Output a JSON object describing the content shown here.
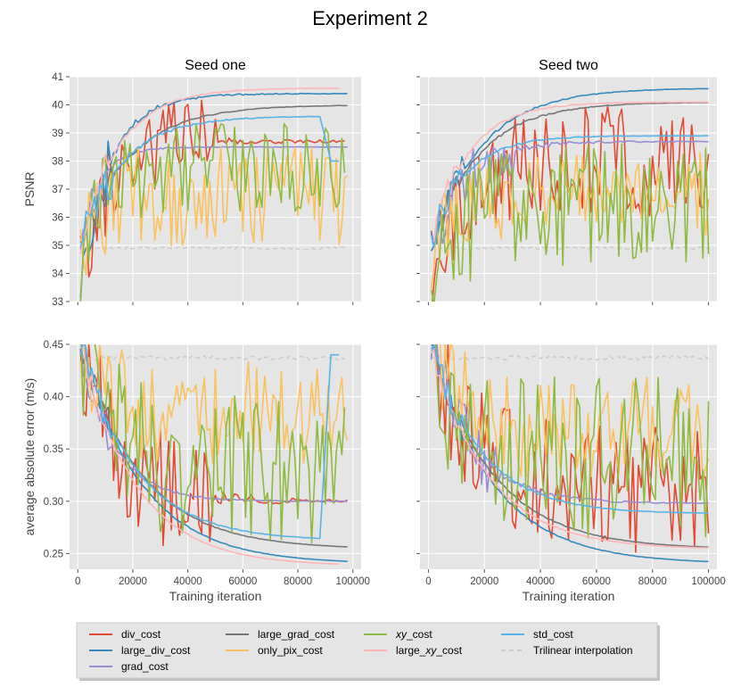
{
  "figure": {
    "suptitle": "Experiment 2"
  },
  "legend": [
    {
      "label": "div_cost",
      "color": "#E24A33",
      "dashed": false
    },
    {
      "label": "large_div_cost",
      "color": "#348ABD",
      "dashed": false
    },
    {
      "label": "grad_cost",
      "color": "#988ED5",
      "dashed": false
    },
    {
      "label": "large_grad_cost",
      "color": "#777777",
      "dashed": false
    },
    {
      "label": "only_pix_cost",
      "color": "#FBC15E",
      "dashed": false
    },
    {
      "label": "xy_cost",
      "color": "#8EBA42",
      "dashed": false,
      "italic_part": "xy",
      "suffix": "_cost"
    },
    {
      "label": "large_xy_cost",
      "color": "#FFB5B8",
      "dashed": false,
      "prefix": "large_",
      "italic_part": "xy",
      "suffix": "_cost"
    },
    {
      "label": "std_cost",
      "color": "#56B4E9",
      "dashed": false
    },
    {
      "label": "Trilinear interpolation",
      "color": "#CCCCCC",
      "dashed": true
    }
  ],
  "chart_data": [
    {
      "type": "line",
      "title": "Seed one",
      "xlabel": "",
      "ylabel": "PSNR",
      "xlim": [
        -3000,
        103000
      ],
      "ylim": [
        33,
        41
      ],
      "xticks": [
        0,
        20000,
        40000,
        60000,
        80000,
        100000
      ],
      "xticklabels": [],
      "yticks": [
        33,
        34,
        35,
        36,
        37,
        38,
        39,
        40,
        41
      ],
      "yticklabels": [
        "33",
        "34",
        "35",
        "36",
        "37",
        "38",
        "39",
        "40",
        "41"
      ],
      "series": [
        {
          "name": "div_cost",
          "x_start": 1000,
          "x_end": 97000,
          "start": 34.0,
          "plateau": 38.7,
          "tau": 10000,
          "noise": 1.6,
          "noise_end": 50000,
          "seed": 11
        },
        {
          "name": "large_div_cost",
          "x_start": 1000,
          "x_end": 98000,
          "start": 34.0,
          "plateau": 40.4,
          "tau": 11000,
          "noise": 1.2,
          "noise_end": 12000,
          "seed": 12
        },
        {
          "name": "grad_cost",
          "x_start": 1000,
          "x_end": 98000,
          "start": 35.0,
          "plateau": 38.5,
          "tau": 7000,
          "noise": 0.5,
          "noise_end": 8000,
          "seed": 13
        },
        {
          "name": "large_grad_cost",
          "x_start": 1000,
          "x_end": 98000,
          "start": 35.0,
          "plateau": 40.0,
          "tau": 18000,
          "noise": 0.6,
          "noise_end": 12000,
          "seed": 14
        },
        {
          "name": "only_pix_cost",
          "x_start": 1000,
          "x_end": 98000,
          "start": 34.5,
          "plateau": 36.8,
          "tau": 6000,
          "noise": 1.8,
          "noise_end": 98000,
          "seed": 15
        },
        {
          "name": "xy_cost",
          "x_start": 1000,
          "x_end": 97000,
          "start": 34.5,
          "plateau": 37.8,
          "tau": 8000,
          "noise": 1.6,
          "noise_end": 97000,
          "seed": 16
        },
        {
          "name": "large_xy_cost",
          "x_start": 1000,
          "x_end": 95000,
          "start": 35.0,
          "plateau": 40.6,
          "tau": 14000,
          "noise": 0.6,
          "noise_end": 10000,
          "seed": 17
        },
        {
          "name": "std_cost",
          "x_start": 1000,
          "x_end": 95000,
          "start": 35.0,
          "plateau": 39.6,
          "tau": 15000,
          "noise": 0.8,
          "noise_end": 12000,
          "seed": 18,
          "drop_at": 88000,
          "drop_to": 38.0
        },
        {
          "name": "Trilinear interpolation",
          "x_start": 1000,
          "x_end": 97000,
          "start": 34.9,
          "plateau": 34.9,
          "tau": 1000,
          "noise": 0.05,
          "noise_end": 97000,
          "seed": 19
        }
      ]
    },
    {
      "type": "line",
      "title": "Seed two",
      "xlabel": "",
      "ylabel": "",
      "xlim": [
        -3000,
        103000
      ],
      "ylim": [
        33,
        41
      ],
      "xticks": [
        0,
        20000,
        40000,
        60000,
        80000,
        100000
      ],
      "xticklabels": [],
      "yticks": [
        33,
        34,
        35,
        36,
        37,
        38,
        39,
        40,
        41
      ],
      "yticklabels": [],
      "series": [
        {
          "name": "div_cost",
          "x_start": 1000,
          "x_end": 100000,
          "start": 34.0,
          "plateau": 38.0,
          "tau": 12000,
          "noise": 2.0,
          "noise_end": 100000,
          "seed": 21
        },
        {
          "name": "large_div_cost",
          "x_start": 1000,
          "x_end": 100000,
          "start": 35.0,
          "plateau": 40.6,
          "tau": 18000,
          "noise": 0.6,
          "noise_end": 12000,
          "seed": 22
        },
        {
          "name": "grad_cost",
          "x_start": 1000,
          "x_end": 100000,
          "start": 35.0,
          "plateau": 38.7,
          "tau": 12000,
          "noise": 1.0,
          "noise_end": 30000,
          "seed": 23
        },
        {
          "name": "large_grad_cost",
          "x_start": 1000,
          "x_end": 100000,
          "start": 35.0,
          "plateau": 40.1,
          "tau": 17000,
          "noise": 0.6,
          "noise_end": 12000,
          "seed": 24
        },
        {
          "name": "only_pix_cost",
          "x_start": 1000,
          "x_end": 100000,
          "start": 34.5,
          "plateau": 36.8,
          "tau": 8000,
          "noise": 1.5,
          "noise_end": 100000,
          "seed": 25
        },
        {
          "name": "xy_cost",
          "x_start": 1000,
          "x_end": 100000,
          "start": 34.0,
          "plateau": 36.5,
          "tau": 10000,
          "noise": 2.2,
          "noise_end": 100000,
          "seed": 26
        },
        {
          "name": "large_xy_cost",
          "x_start": 1000,
          "x_end": 100000,
          "start": 35.0,
          "plateau": 40.1,
          "tau": 13000,
          "noise": 0.5,
          "noise_end": 10000,
          "seed": 27
        },
        {
          "name": "std_cost",
          "x_start": 1000,
          "x_end": 100000,
          "start": 35.0,
          "plateau": 38.9,
          "tau": 12000,
          "noise": 0.6,
          "noise_end": 12000,
          "seed": 28
        },
        {
          "name": "Trilinear interpolation",
          "x_start": 1000,
          "x_end": 100000,
          "start": 34.9,
          "plateau": 34.9,
          "tau": 1000,
          "noise": 0.05,
          "noise_end": 100000,
          "seed": 29
        }
      ]
    },
    {
      "type": "line",
      "title": "",
      "xlabel": "Training iteration",
      "ylabel": "average absolute error (m/s)",
      "xlim": [
        -3000,
        103000
      ],
      "ylim": [
        0.235,
        0.45
      ],
      "xticks": [
        0,
        20000,
        40000,
        60000,
        80000,
        100000
      ],
      "xticklabels": [
        "0",
        "20000",
        "40000",
        "60000",
        "80000",
        "100000"
      ],
      "yticks": [
        0.25,
        0.3,
        0.35,
        0.4,
        0.45
      ],
      "yticklabels": [
        "0.25",
        "0.30",
        "0.35",
        "0.40",
        "0.45"
      ],
      "series": [
        {
          "name": "div_cost",
          "x_start": 1000,
          "x_end": 98000,
          "start": 0.45,
          "plateau": 0.3,
          "tau": 14000,
          "noise": 0.06,
          "noise_end": 48000,
          "seed": 31
        },
        {
          "name": "large_div_cost",
          "x_start": 1000,
          "x_end": 98000,
          "start": 0.45,
          "plateau": 0.24,
          "tau": 22000,
          "noise": 0.012,
          "noise_end": 12000,
          "seed": 32
        },
        {
          "name": "grad_cost",
          "x_start": 1000,
          "x_end": 98000,
          "start": 0.45,
          "plateau": 0.3,
          "tau": 12000,
          "noise": 0.02,
          "noise_end": 12000,
          "seed": 33
        },
        {
          "name": "large_grad_cost",
          "x_start": 1000,
          "x_end": 98000,
          "start": 0.45,
          "plateau": 0.254,
          "tau": 22000,
          "noise": 0.012,
          "noise_end": 12000,
          "seed": 34
        },
        {
          "name": "only_pix_cost",
          "x_start": 1000,
          "x_end": 98000,
          "start": 0.45,
          "plateau": 0.385,
          "tau": 8000,
          "noise": 0.05,
          "noise_end": 98000,
          "seed": 35
        },
        {
          "name": "xy_cost",
          "x_start": 1000,
          "x_end": 97000,
          "start": 0.45,
          "plateau": 0.33,
          "tau": 12000,
          "noise": 0.07,
          "noise_end": 97000,
          "seed": 36
        },
        {
          "name": "large_xy_cost",
          "x_start": 1000,
          "x_end": 95000,
          "start": 0.45,
          "plateau": 0.238,
          "tau": 20000,
          "noise": 0.012,
          "noise_end": 10000,
          "seed": 37
        },
        {
          "name": "std_cost",
          "x_start": 1000,
          "x_end": 95000,
          "start": 0.45,
          "plateau": 0.262,
          "tau": 20000,
          "noise": 0.015,
          "noise_end": 12000,
          "seed": 38,
          "drop_at": 88000,
          "drop_to": 0.44
        },
        {
          "name": "Trilinear interpolation",
          "x_start": 1000,
          "x_end": 97000,
          "start": 0.437,
          "plateau": 0.437,
          "tau": 1000,
          "noise": 0.002,
          "noise_end": 97000,
          "seed": 39
        }
      ]
    },
    {
      "type": "line",
      "title": "",
      "xlabel": "Training iteration",
      "ylabel": "",
      "xlim": [
        -3000,
        103000
      ],
      "ylim": [
        0.235,
        0.45
      ],
      "xticks": [
        0,
        20000,
        40000,
        60000,
        80000,
        100000
      ],
      "xticklabels": [
        "0",
        "20000",
        "40000",
        "60000",
        "80000",
        "100000"
      ],
      "yticks": [
        0.25,
        0.3,
        0.35,
        0.4,
        0.45
      ],
      "yticklabels": [],
      "series": [
        {
          "name": "div_cost",
          "x_start": 1000,
          "x_end": 100000,
          "start": 0.45,
          "plateau": 0.31,
          "tau": 15000,
          "noise": 0.06,
          "noise_end": 100000,
          "seed": 41
        },
        {
          "name": "large_div_cost",
          "x_start": 1000,
          "x_end": 100000,
          "start": 0.45,
          "plateau": 0.24,
          "tau": 22000,
          "noise": 0.012,
          "noise_end": 12000,
          "seed": 42
        },
        {
          "name": "grad_cost",
          "x_start": 1000,
          "x_end": 100000,
          "start": 0.45,
          "plateau": 0.298,
          "tau": 15000,
          "noise": 0.03,
          "noise_end": 25000,
          "seed": 43
        },
        {
          "name": "large_grad_cost",
          "x_start": 1000,
          "x_end": 100000,
          "start": 0.45,
          "plateau": 0.254,
          "tau": 22000,
          "noise": 0.012,
          "noise_end": 12000,
          "seed": 44
        },
        {
          "name": "only_pix_cost",
          "x_start": 1000,
          "x_end": 100000,
          "start": 0.45,
          "plateau": 0.37,
          "tau": 10000,
          "noise": 0.05,
          "noise_end": 100000,
          "seed": 45
        },
        {
          "name": "xy_cost",
          "x_start": 1000,
          "x_end": 100000,
          "start": 0.45,
          "plateau": 0.34,
          "tau": 12000,
          "noise": 0.08,
          "noise_end": 100000,
          "seed": 46
        },
        {
          "name": "large_xy_cost",
          "x_start": 1000,
          "x_end": 100000,
          "start": 0.45,
          "plateau": 0.254,
          "tau": 20000,
          "noise": 0.012,
          "noise_end": 10000,
          "seed": 47
        },
        {
          "name": "std_cost",
          "x_start": 1000,
          "x_end": 100000,
          "start": 0.45,
          "plateau": 0.288,
          "tau": 18000,
          "noise": 0.015,
          "noise_end": 12000,
          "seed": 48
        },
        {
          "name": "Trilinear interpolation",
          "x_start": 1000,
          "x_end": 100000,
          "start": 0.437,
          "plateau": 0.437,
          "tau": 1000,
          "noise": 0.002,
          "noise_end": 100000,
          "seed": 49
        }
      ]
    }
  ]
}
